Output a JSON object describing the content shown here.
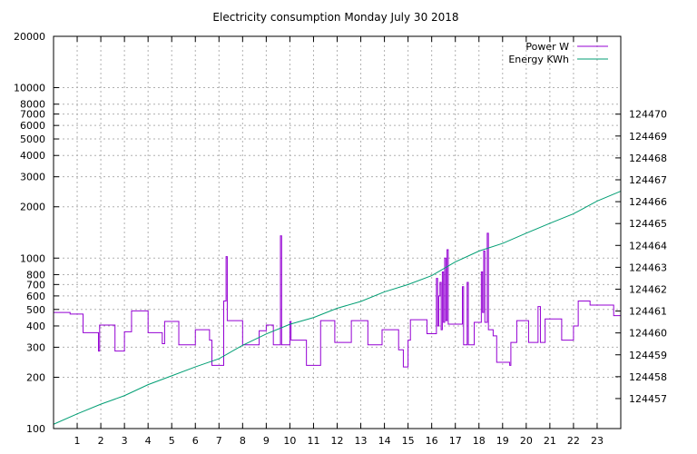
{
  "chart_data": {
    "type": "line",
    "title": "Electricity consumption Monday July 30 2018",
    "xlabel": "",
    "ylabel": "",
    "y2label": "",
    "grid": true,
    "legend_position": "top-right",
    "x_range": [
      0,
      24
    ],
    "x_ticks": [
      "1",
      "2",
      "3",
      "4",
      "5",
      "6",
      "7",
      "8",
      "9",
      "10",
      "11",
      "12",
      "13",
      "14",
      "15",
      "16",
      "17",
      "18",
      "19",
      "20",
      "21",
      "22",
      "23"
    ],
    "y_left": {
      "scale": "log",
      "range": [
        100,
        20000
      ],
      "ticks": [
        {
          "value": 100,
          "label": "100"
        },
        {
          "value": 200,
          "label": "200"
        },
        {
          "value": 300,
          "label": "300"
        },
        {
          "value": 400,
          "label": "400"
        },
        {
          "value": 500,
          "label": "500"
        },
        {
          "value": 600,
          "label": "600"
        },
        {
          "value": 700,
          "label": "700"
        },
        {
          "value": 800,
          "label": "800"
        },
        {
          "value": 1000,
          "label": "1000"
        },
        {
          "value": 2000,
          "label": "2000"
        },
        {
          "value": 3000,
          "label": "3000"
        },
        {
          "value": 4000,
          "label": "4000"
        },
        {
          "value": 5000,
          "label": "5000"
        },
        {
          "value": 6000,
          "label": "6000"
        },
        {
          "value": 7000,
          "label": "7000"
        },
        {
          "value": 8000,
          "label": "8000"
        },
        {
          "value": 10000,
          "label": "10000"
        },
        {
          "value": 20000,
          "label": "20000"
        }
      ]
    },
    "y_right": {
      "scale": "log-positioned",
      "ticks": [
        "124457",
        "124458",
        "124459",
        "124460",
        "124461",
        "124462",
        "124463",
        "124464",
        "124465",
        "124466",
        "124467",
        "124468",
        "124469",
        "124470"
      ]
    },
    "series": [
      {
        "name": "Power W",
        "axis": "left",
        "color": "#9400d3",
        "points": [
          [
            0.0,
            480
          ],
          [
            0.7,
            480
          ],
          [
            0.7,
            470
          ],
          [
            1.25,
            470
          ],
          [
            1.25,
            365
          ],
          [
            1.9,
            365
          ],
          [
            1.9,
            285
          ],
          [
            1.95,
            285
          ],
          [
            1.95,
            405
          ],
          [
            2.6,
            405
          ],
          [
            2.6,
            285
          ],
          [
            3.0,
            285
          ],
          [
            3.0,
            370
          ],
          [
            3.3,
            370
          ],
          [
            3.3,
            490
          ],
          [
            4.0,
            490
          ],
          [
            4.0,
            365
          ],
          [
            4.6,
            365
          ],
          [
            4.6,
            315
          ],
          [
            4.7,
            315
          ],
          [
            4.7,
            425
          ],
          [
            5.3,
            425
          ],
          [
            5.3,
            310
          ],
          [
            6.0,
            310
          ],
          [
            6.0,
            380
          ],
          [
            6.6,
            380
          ],
          [
            6.6,
            330
          ],
          [
            6.7,
            330
          ],
          [
            6.7,
            235
          ],
          [
            7.2,
            235
          ],
          [
            7.2,
            560
          ],
          [
            7.3,
            560
          ],
          [
            7.3,
            1020
          ],
          [
            7.35,
            1020
          ],
          [
            7.35,
            430
          ],
          [
            8.0,
            430
          ],
          [
            8.0,
            310
          ],
          [
            8.7,
            310
          ],
          [
            8.7,
            375
          ],
          [
            9.0,
            375
          ],
          [
            9.0,
            405
          ],
          [
            9.3,
            405
          ],
          [
            9.3,
            310
          ],
          [
            9.6,
            310
          ],
          [
            9.6,
            1350
          ],
          [
            9.65,
            1350
          ],
          [
            9.65,
            310
          ],
          [
            10.0,
            310
          ],
          [
            10.0,
            425
          ],
          [
            10.05,
            425
          ],
          [
            10.05,
            330
          ],
          [
            10.7,
            330
          ],
          [
            10.7,
            235
          ],
          [
            11.3,
            235
          ],
          [
            11.3,
            430
          ],
          [
            11.9,
            430
          ],
          [
            11.9,
            320
          ],
          [
            12.6,
            320
          ],
          [
            12.6,
            430
          ],
          [
            13.3,
            430
          ],
          [
            13.3,
            310
          ],
          [
            13.9,
            310
          ],
          [
            13.9,
            380
          ],
          [
            14.6,
            380
          ],
          [
            14.6,
            290
          ],
          [
            14.8,
            290
          ],
          [
            14.8,
            230
          ],
          [
            15.0,
            230
          ],
          [
            15.0,
            330
          ],
          [
            15.1,
            330
          ],
          [
            15.1,
            435
          ],
          [
            15.8,
            435
          ],
          [
            15.8,
            360
          ],
          [
            16.2,
            360
          ],
          [
            16.2,
            760
          ],
          [
            16.25,
            760
          ],
          [
            16.25,
            400
          ],
          [
            16.3,
            400
          ],
          [
            16.3,
            600
          ],
          [
            16.35,
            600
          ],
          [
            16.35,
            720
          ],
          [
            16.4,
            720
          ],
          [
            16.4,
            380
          ],
          [
            16.45,
            380
          ],
          [
            16.45,
            830
          ],
          [
            16.5,
            830
          ],
          [
            16.5,
            420
          ],
          [
            16.55,
            420
          ],
          [
            16.55,
            1000
          ],
          [
            16.6,
            1000
          ],
          [
            16.6,
            430
          ],
          [
            16.65,
            430
          ],
          [
            16.65,
            1120
          ],
          [
            16.7,
            1120
          ],
          [
            16.7,
            410
          ],
          [
            17.3,
            410
          ],
          [
            17.3,
            680
          ],
          [
            17.35,
            680
          ],
          [
            17.35,
            310
          ],
          [
            17.5,
            310
          ],
          [
            17.5,
            720
          ],
          [
            17.55,
            720
          ],
          [
            17.55,
            310
          ],
          [
            17.8,
            310
          ],
          [
            17.8,
            420
          ],
          [
            18.1,
            420
          ],
          [
            18.1,
            830
          ],
          [
            18.15,
            830
          ],
          [
            18.15,
            480
          ],
          [
            18.2,
            480
          ],
          [
            18.2,
            1100
          ],
          [
            18.25,
            1100
          ],
          [
            18.25,
            420
          ],
          [
            18.35,
            420
          ],
          [
            18.35,
            1400
          ],
          [
            18.4,
            1400
          ],
          [
            18.4,
            380
          ],
          [
            18.6,
            380
          ],
          [
            18.6,
            350
          ],
          [
            18.75,
            350
          ],
          [
            18.75,
            245
          ],
          [
            19.3,
            245
          ],
          [
            19.3,
            235
          ],
          [
            19.35,
            235
          ],
          [
            19.35,
            320
          ],
          [
            19.6,
            320
          ],
          [
            19.6,
            430
          ],
          [
            20.1,
            430
          ],
          [
            20.1,
            320
          ],
          [
            20.5,
            320
          ],
          [
            20.5,
            520
          ],
          [
            20.6,
            520
          ],
          [
            20.6,
            320
          ],
          [
            20.8,
            320
          ],
          [
            20.8,
            440
          ],
          [
            21.5,
            440
          ],
          [
            21.5,
            330
          ],
          [
            22.0,
            330
          ],
          [
            22.0,
            400
          ],
          [
            22.2,
            400
          ],
          [
            22.2,
            560
          ],
          [
            22.7,
            560
          ],
          [
            22.7,
            530
          ],
          [
            23.7,
            530
          ],
          [
            23.7,
            460
          ],
          [
            24.0,
            460
          ]
        ]
      },
      {
        "name": "Energy KWh",
        "axis": "left",
        "color": "#009e73",
        "points": [
          [
            0.0,
            106
          ],
          [
            1.0,
            122
          ],
          [
            2.0,
            139
          ],
          [
            3.0,
            156
          ],
          [
            4.0,
            181
          ],
          [
            5.0,
            204
          ],
          [
            6.0,
            230
          ],
          [
            7.0,
            257
          ],
          [
            8.0,
            308
          ],
          [
            9.0,
            359
          ],
          [
            10.0,
            409
          ],
          [
            11.0,
            448
          ],
          [
            12.0,
            508
          ],
          [
            13.0,
            557
          ],
          [
            14.0,
            634
          ],
          [
            15.0,
            700
          ],
          [
            16.0,
            789
          ],
          [
            17.0,
            950
          ],
          [
            18.0,
            1100
          ],
          [
            19.0,
            1220
          ],
          [
            20.0,
            1400
          ],
          [
            21.0,
            1600
          ],
          [
            22.0,
            1820
          ],
          [
            23.0,
            2160
          ],
          [
            24.0,
            2470
          ]
        ]
      }
    ]
  }
}
